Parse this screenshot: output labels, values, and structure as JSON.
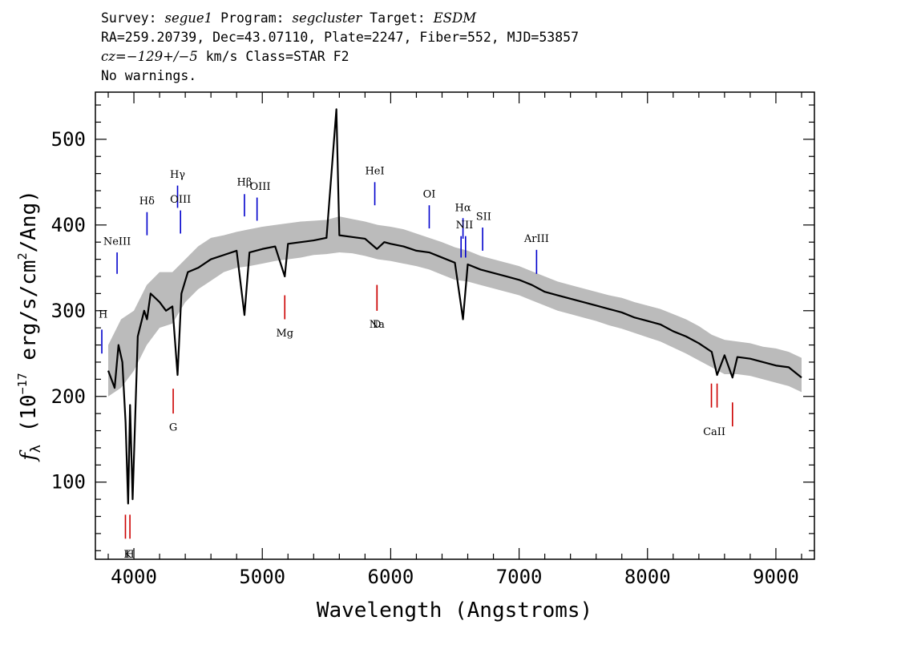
{
  "header": {
    "line1": {
      "survey_label": "Survey: ",
      "survey": "segue1",
      "program_label": " Program: ",
      "program": "segcluster",
      "target_label": " Target: ",
      "target": "ESDM"
    },
    "line2": "RA=259.20739, Dec=43.07110, Plate=2247, Fiber=552, MJD=53857",
    "line3": {
      "cz": "cz=−129+/−5",
      "rest": " km/s Class=STAR F2"
    },
    "line4": "No warnings."
  },
  "chart_data": {
    "type": "line",
    "xlabel": "Wavelength (Angstroms)",
    "ylabel": "f_λ (10^-17 erg/s/cm^2/Ang)",
    "ylabel_parts": {
      "f": "f",
      "sub": "λ",
      "a": " (10",
      "exp1": "−17",
      "b": " erg/s/cm",
      "exp2": "2",
      "c": "/Ang)"
    },
    "xlim": [
      3700,
      9300
    ],
    "ylim": [
      10,
      555
    ],
    "xticks": [
      4000,
      5000,
      6000,
      7000,
      8000,
      9000
    ],
    "yticks": [
      100,
      200,
      300,
      400,
      500
    ],
    "series": [
      {
        "role": "flux",
        "color": "#000000",
        "x": [
          3800,
          3850,
          3880,
          3910,
          3935,
          3955,
          3970,
          3990,
          4030,
          4080,
          4102,
          4130,
          4200,
          4250,
          4300,
          4340,
          4370,
          4420,
          4500,
          4600,
          4700,
          4800,
          4861,
          4900,
          5000,
          5100,
          5175,
          5200,
          5300,
          5400,
          5500,
          5577,
          5600,
          5700,
          5800,
          5893,
          5950,
          6000,
          6100,
          6200,
          6300,
          6400,
          6500,
          6563,
          6600,
          6700,
          6800,
          6900,
          7000,
          7100,
          7200,
          7300,
          7400,
          7500,
          7600,
          7700,
          7800,
          7900,
          8000,
          8100,
          8200,
          8300,
          8400,
          8500,
          8542,
          8600,
          8662,
          8700,
          8800,
          8900,
          9000,
          9100,
          9200
        ],
        "y": [
          230,
          210,
          260,
          240,
          170,
          75,
          190,
          80,
          270,
          300,
          290,
          320,
          310,
          300,
          305,
          225,
          320,
          345,
          350,
          360,
          365,
          370,
          295,
          368,
          372,
          375,
          340,
          378,
          380,
          382,
          385,
          535,
          388,
          386,
          384,
          372,
          380,
          378,
          375,
          370,
          368,
          362,
          356,
          290,
          354,
          348,
          344,
          340,
          336,
          330,
          322,
          318,
          314,
          310,
          306,
          302,
          298,
          292,
          288,
          284,
          276,
          270,
          262,
          252,
          225,
          248,
          222,
          246,
          244,
          240,
          236,
          234,
          222
        ]
      },
      {
        "role": "error",
        "color": "#bbbbbb",
        "x": [
          3800,
          3900,
          4000,
          4100,
          4200,
          4300,
          4400,
          4500,
          4600,
          4700,
          4800,
          4900,
          5000,
          5100,
          5200,
          5300,
          5400,
          5500,
          5600,
          5700,
          5800,
          5900,
          6000,
          6100,
          6200,
          6300,
          6400,
          6500,
          6600,
          6700,
          6800,
          6900,
          7000,
          7100,
          7200,
          7300,
          7400,
          7500,
          7600,
          7700,
          7800,
          7900,
          8000,
          8100,
          8200,
          8300,
          8400,
          8500,
          8600,
          8700,
          8800,
          8900,
          9000,
          9100,
          9200
        ],
        "lower": [
          200,
          210,
          230,
          260,
          280,
          285,
          310,
          325,
          335,
          345,
          350,
          352,
          355,
          358,
          360,
          362,
          365,
          366,
          368,
          367,
          364,
          360,
          358,
          355,
          352,
          348,
          342,
          336,
          334,
          330,
          326,
          322,
          318,
          312,
          306,
          300,
          296,
          292,
          288,
          283,
          279,
          274,
          269,
          264,
          257,
          250,
          242,
          234,
          226,
          226,
          224,
          220,
          216,
          212,
          205
        ],
        "upper": [
          260,
          290,
          300,
          330,
          345,
          345,
          360,
          375,
          385,
          388,
          392,
          395,
          398,
          400,
          402,
          404,
          405,
          406,
          410,
          407,
          404,
          400,
          398,
          395,
          390,
          385,
          380,
          374,
          370,
          364,
          360,
          356,
          352,
          346,
          340,
          334,
          330,
          326,
          322,
          318,
          315,
          310,
          306,
          302,
          296,
          290,
          282,
          272,
          266,
          264,
          262,
          258,
          256,
          252,
          245
        ]
      }
    ],
    "emission_lines": [
      {
        "label": "H",
        "wave": 3750,
        "color": "#0000cc",
        "x_from": 3745,
        "x_to": 3770,
        "y_low": 250,
        "y_high": 278,
        "label_y": 292
      },
      {
        "label": "NeIII",
        "wave": 3869,
        "color": "#0000cc",
        "y_low": 343,
        "y_high": 368,
        "label_y": 377
      },
      {
        "label": "Hδ",
        "wave": 4102,
        "color": "#0000cc",
        "y_low": 388,
        "y_high": 415,
        "label_y": 424
      },
      {
        "label": "Hγ",
        "wave": 4340,
        "color": "#0000cc",
        "y_low": 420,
        "y_high": 446,
        "label_y": 455
      },
      {
        "label": "OIII",
        "wave": 4363,
        "color": "#0000cc",
        "y_low": 390,
        "y_high": 417,
        "label_y": 426
      },
      {
        "label": "Hβ",
        "wave": 4861,
        "color": "#0000cc",
        "y_low": 410,
        "y_high": 436,
        "label_y": 446
      },
      {
        "label": "OIII",
        "wave": 4959,
        "color": "#0000cc",
        "x_to": 5007,
        "y_low": 405,
        "y_high": 432,
        "label_y": 441
      },
      {
        "label": "HeI",
        "wave": 5876,
        "color": "#0000cc",
        "y_low": 423,
        "y_high": 450,
        "label_y": 459
      },
      {
        "label": "OI",
        "wave": 6300,
        "color": "#0000cc",
        "y_low": 396,
        "y_high": 423,
        "label_y": 432
      },
      {
        "label": "NII",
        "wave": 6548,
        "color": "#0000cc",
        "x_to": 6583,
        "y_low": 362,
        "y_high": 387,
        "label_y": 396
      },
      {
        "label": "Hα",
        "wave": 6563,
        "color": "#0000cc",
        "y_low": 384,
        "y_high": 408,
        "label_y": 416
      },
      {
        "label": "NII",
        "wave": 6583,
        "color": "#0000cc",
        "y_low": 362,
        "y_high": 387,
        "label_y": 396
      },
      {
        "label": "SII",
        "wave": 6716,
        "color": "#0000cc",
        "x_to": 6731,
        "y_low": 370,
        "y_high": 397,
        "label_y": 406
      },
      {
        "label": "ArIII",
        "wave": 7136,
        "color": "#0000cc",
        "y_low": 343,
        "y_high": 371,
        "label_y": 380
      }
    ],
    "absorption_lines": [
      {
        "label": "K",
        "wave": 3934,
        "color": "#cc0000",
        "x_to": 3969,
        "y_low": 34,
        "y_high": 62,
        "label_y": 12
      },
      {
        "label": "H",
        "wave": 3969,
        "color": "#cc0000",
        "y_low": 34,
        "y_high": 62,
        "label_y": 12
      },
      {
        "label": "G",
        "wave": 4306,
        "color": "#cc0000",
        "y_low": 180,
        "y_high": 209,
        "label_y": 160
      },
      {
        "label": "Mg",
        "wave": 5175,
        "color": "#cc0000",
        "y_low": 290,
        "y_high": 318,
        "label_y": 270
      },
      {
        "label": "Na",
        "wave": 5893,
        "color": "#cc0000",
        "y_low": 300,
        "y_high": 330,
        "label_y": 280
      },
      {
        "label": "D",
        "wave": 5893,
        "color": "#cc0000",
        "y_low": 300,
        "y_high": 330,
        "label_y": 280
      },
      {
        "label": "CaII",
        "wave": 8498,
        "color": "#cc0000",
        "x_to": 8542,
        "y_low": 187,
        "y_high": 215,
        "label_y": 155
      },
      {
        "label": "",
        "wave": 8542,
        "color": "#cc0000",
        "y_low": 187,
        "y_high": 215,
        "label_y": 155
      },
      {
        "label": "",
        "wave": 8662,
        "color": "#cc0000",
        "y_low": 165,
        "y_high": 193,
        "label_y": 155
      }
    ]
  }
}
